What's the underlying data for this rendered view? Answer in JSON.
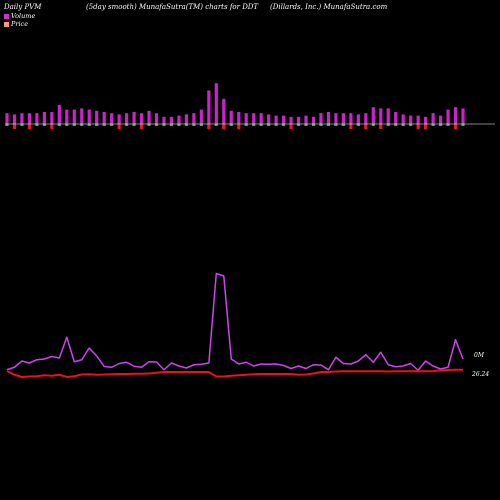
{
  "header": {
    "left": "Daily PVM",
    "middle": "(5day smooth) MunafaSutra(TM) charts for DDT",
    "right": "(Dillards, Inc.) MunafaSutra.com"
  },
  "legend": [
    {
      "label": "Volume",
      "color": "#cc33cc"
    },
    {
      "label": "Price",
      "color": "#ff9977"
    }
  ],
  "colors": {
    "volume_up": "#cc22cc",
    "volume_down": "#dd2222",
    "volume_neutral": "#33bb33",
    "volume_line": "#cc44ee",
    "price_line": "#ee1111"
  },
  "chart_data": [
    {
      "type": "bar",
      "title": "Volume",
      "values": [
        9,
        8,
        9,
        9,
        9,
        10,
        10,
        16,
        12,
        12,
        13,
        12,
        11,
        10,
        9,
        8,
        9,
        10,
        9,
        11,
        9,
        6,
        6,
        7,
        8,
        9,
        12,
        28,
        34,
        21,
        11,
        10,
        9,
        9,
        9,
        8,
        7,
        7,
        6,
        6,
        7,
        6,
        9,
        10,
        9,
        9,
        9,
        8,
        9,
        14,
        13,
        13,
        10,
        8,
        7,
        7,
        6,
        9,
        7,
        12,
        14,
        13
      ],
      "direction": [
        1,
        -1,
        1,
        -1,
        1,
        1,
        -1,
        1,
        1,
        1,
        1,
        1,
        1,
        1,
        1,
        -1,
        1,
        1,
        -1,
        1,
        1,
        1,
        1,
        1,
        1,
        1,
        1,
        -1,
        1,
        -1,
        1,
        -1,
        1,
        1,
        1,
        1,
        1,
        1,
        -1,
        1,
        1,
        1,
        1,
        1,
        1,
        1,
        -1,
        1,
        -1,
        1,
        -1,
        1,
        1,
        1,
        1,
        -1,
        -1,
        1,
        1,
        1,
        -1,
        1
      ]
    },
    {
      "type": "line",
      "series": [
        {
          "name": "Volume",
          "label": "0M",
          "values": [
            4.5,
            5.5,
            8.0,
            7.2,
            8.5,
            8.8,
            9.8,
            9.2,
            17.5,
            7.7,
            8.5,
            13.2,
            10.0,
            5.8,
            5.5,
            7.0,
            7.5,
            5.9,
            5.5,
            7.7,
            7.6,
            4.5,
            7.2,
            6.0,
            5.2,
            6.5,
            6.7,
            7.2,
            43.0,
            42.0,
            8.8,
            6.8,
            7.5,
            6.0,
            6.8,
            6.7,
            6.8,
            6.2,
            5.0,
            6.0,
            5.0,
            6.5,
            6.4,
            4.5,
            9.5,
            7.0,
            6.8,
            8.0,
            10.5,
            7.5,
            11.5,
            6.5,
            5.7,
            6.0,
            7.0,
            4.3,
            8.0,
            6.0,
            4.8,
            5.5,
            16.5,
            8.8
          ]
        },
        {
          "name": "Price",
          "label": "26.24",
          "values": [
            4.0,
            2.5,
            1.6,
            1.8,
            1.9,
            2.3,
            2.1,
            2.5,
            1.6,
            1.9,
            2.6,
            2.7,
            2.5,
            2.6,
            2.7,
            2.8,
            2.8,
            2.9,
            2.9,
            3.0,
            3.3,
            3.6,
            3.6,
            3.6,
            3.6,
            3.6,
            3.6,
            3.6,
            1.8,
            1.8,
            2.1,
            2.3,
            2.5,
            2.7,
            2.8,
            2.8,
            2.8,
            2.8,
            2.8,
            2.5,
            2.6,
            3.0,
            3.6,
            3.6,
            3.8,
            3.9,
            3.9,
            3.9,
            3.9,
            3.9,
            3.9,
            3.8,
            3.9,
            3.9,
            3.9,
            3.9,
            3.9,
            3.9,
            4.3,
            4.4,
            4.5,
            4.5
          ]
        }
      ]
    }
  ]
}
